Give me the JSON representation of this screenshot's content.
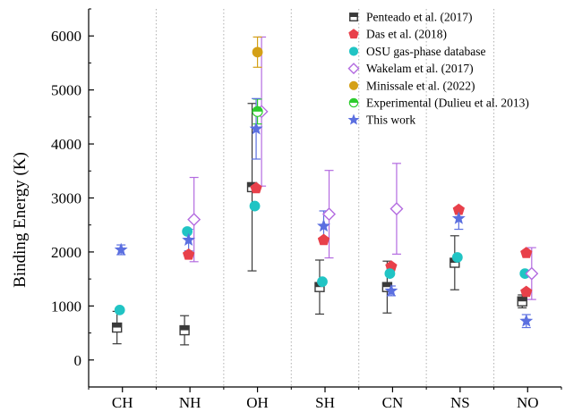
{
  "chart_data": {
    "type": "scatter",
    "title": "",
    "xlabel": "",
    "ylabel": "Binding Energy (K)",
    "categories": [
      "CH",
      "NH",
      "OH",
      "SH",
      "CN",
      "NS",
      "NO"
    ],
    "ylim": [
      -500,
      6500
    ],
    "yticks": [
      0,
      1000,
      2000,
      3000,
      4000,
      5000,
      6000
    ],
    "grid": "vertical dotted separators between categories",
    "legend_position": "top-right",
    "series": [
      {
        "name": "Penteado et al. (2017)",
        "marker": "half-filled-square",
        "color": "#3a3a3a",
        "offset": -0.08,
        "points": [
          {
            "category": "CH",
            "y": 600,
            "err": 300
          },
          {
            "category": "NH",
            "y": 550,
            "err": 270
          },
          {
            "category": "OH",
            "y": 3200,
            "err": 1550
          },
          {
            "category": "SH",
            "y": 1350,
            "err": 500
          },
          {
            "category": "CN",
            "y": 1350,
            "err": 480
          },
          {
            "category": "NS",
            "y": 1800,
            "err": 500
          },
          {
            "category": "NO",
            "y": 1085,
            "err": 120
          }
        ]
      },
      {
        "name": "Das et al. (2018)",
        "marker": "pentagon",
        "color": "#e8404a",
        "offset": -0.02,
        "points": [
          {
            "category": "NH",
            "y": 1950
          },
          {
            "category": "OH",
            "y": 3180
          },
          {
            "category": "SH",
            "y": 2220
          },
          {
            "category": "CN",
            "y": 1730
          },
          {
            "category": "NS",
            "y": 2780
          },
          {
            "category": "NO",
            "y": 1980
          },
          {
            "category": "NO",
            "y": 1260
          }
        ]
      },
      {
        "name": "OSU gas-phase database",
        "marker": "circle",
        "color": "#21c4c4",
        "offset": -0.04,
        "points": [
          {
            "category": "CH",
            "y": 925
          },
          {
            "category": "NH",
            "y": 2380
          },
          {
            "category": "OH",
            "y": 2850
          },
          {
            "category": "SH",
            "y": 1450
          },
          {
            "category": "CN",
            "y": 1600
          },
          {
            "category": "NS",
            "y": 1900
          },
          {
            "category": "NO",
            "y": 1600
          }
        ]
      },
      {
        "name": "Wakelam et al. (2017)",
        "marker": "diamond",
        "color": "#b36be0",
        "offset": 0.06,
        "points": [
          {
            "category": "NH",
            "y": 2600,
            "err": 780
          },
          {
            "category": "OH",
            "y": 4600,
            "err": 1380
          },
          {
            "category": "SH",
            "y": 2700,
            "err": 810
          },
          {
            "category": "CN",
            "y": 2800,
            "err": 840
          },
          {
            "category": "NO",
            "y": 1600,
            "err": 480
          }
        ]
      },
      {
        "name": "Minissale et al. (2022)",
        "marker": "circle",
        "color": "#d4a017",
        "offset": 0.0,
        "points": [
          {
            "category": "OH",
            "y": 5700,
            "err": 280
          }
        ]
      },
      {
        "name": "Experimental (Dulieu et al. 2013)",
        "marker": "half-filled-circle",
        "color": "#2ecc2e",
        "offset": 0.0,
        "points": [
          {
            "category": "OH",
            "y": 4600,
            "err": 230
          }
        ]
      },
      {
        "name": "This work",
        "marker": "star",
        "color": "#5b6fe0",
        "offset": -0.02,
        "points": [
          {
            "category": "CH",
            "y": 2040,
            "err": 90
          },
          {
            "category": "NH",
            "y": 2220,
            "err": 200
          },
          {
            "category": "OH",
            "y": 4280,
            "err": 560
          },
          {
            "category": "SH",
            "y": 2480,
            "err": 280
          },
          {
            "category": "CN",
            "y": 1280,
            "err": 90
          },
          {
            "category": "NS",
            "y": 2620,
            "err": 200
          },
          {
            "category": "NO",
            "y": 720,
            "err": 120
          }
        ]
      }
    ]
  }
}
